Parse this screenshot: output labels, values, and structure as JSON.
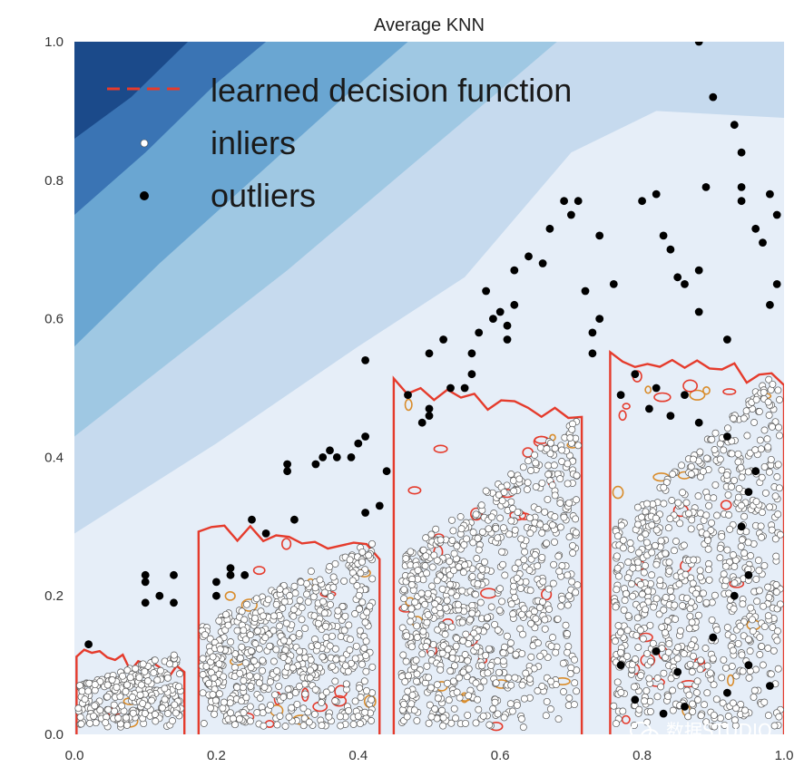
{
  "chart_data": {
    "type": "scatter",
    "title": "Average KNN",
    "xlabel": "",
    "ylabel": "",
    "xlim": [
      0.0,
      1.0
    ],
    "ylim": [
      0.0,
      1.0
    ],
    "grid": false,
    "legend_position": "top-left",
    "x_ticks": [
      "0.0",
      "0.2",
      "0.4",
      "0.6",
      "0.8",
      "1.0"
    ],
    "y_ticks": [
      "0.0",
      "0.2",
      "0.4",
      "0.6",
      "0.8",
      "1.0"
    ],
    "contour_fill": {
      "colormap": "Blues",
      "boundaries": [
        [
          [
            0.0,
            0.86
          ],
          [
            0.08,
            0.92
          ],
          [
            0.16,
            1.0
          ]
        ],
        [
          [
            0.0,
            0.75
          ],
          [
            0.1,
            0.84
          ],
          [
            0.2,
            0.94
          ],
          [
            0.27,
            1.0
          ]
        ],
        [
          [
            0.0,
            0.56
          ],
          [
            0.12,
            0.68
          ],
          [
            0.25,
            0.8
          ],
          [
            0.38,
            0.92
          ],
          [
            0.47,
            1.0
          ]
        ],
        [
          [
            0.0,
            0.43
          ],
          [
            0.15,
            0.55
          ],
          [
            0.3,
            0.67
          ],
          [
            0.45,
            0.8
          ],
          [
            0.6,
            0.93
          ],
          [
            0.68,
            1.0
          ]
        ],
        [
          [
            0.0,
            0.29
          ],
          [
            0.2,
            0.42
          ],
          [
            0.4,
            0.56
          ],
          [
            0.55,
            0.66
          ],
          [
            0.7,
            0.84
          ],
          [
            0.82,
            0.9
          ],
          [
            1.0,
            0.89
          ]
        ]
      ],
      "colors": [
        "#1b4a8a",
        "#3a74b4",
        "#6aa6d2",
        "#9fc8e3",
        "#c6daee",
        "#e6eef8"
      ]
    },
    "series": [
      {
        "name": "learned decision function",
        "kind": "contour-line",
        "color": "#e53b2c",
        "clusters": [
          {
            "x": [
              0.003,
              0.155
            ],
            "y": [
              0.0,
              0.125
            ]
          },
          {
            "x": [
              0.175,
              0.43
            ],
            "y": [
              0.0,
              0.3
            ]
          },
          {
            "x": [
              0.45,
              0.715
            ],
            "y": [
              0.0,
              0.5
            ]
          },
          {
            "x": [
              0.755,
              1.0
            ],
            "y": [
              0.0,
              0.55
            ]
          }
        ]
      },
      {
        "name": "inliers",
        "kind": "points",
        "color": "#ffffff",
        "clusters": [
          {
            "x": [
              0.005,
              0.15
            ],
            "y": [
              0.01,
              0.12
            ],
            "count": 260
          },
          {
            "x": [
              0.18,
              0.42
            ],
            "y": [
              0.01,
              0.28
            ],
            "count": 620
          },
          {
            "x": [
              0.46,
              0.71
            ],
            "y": [
              0.01,
              0.46
            ],
            "count": 820
          },
          {
            "x": [
              0.76,
              0.995
            ],
            "y": [
              0.01,
              0.53
            ],
            "count": 760
          }
        ]
      },
      {
        "name": "outliers",
        "kind": "points",
        "color": "#000000",
        "points": [
          [
            0.02,
            0.13
          ],
          [
            0.1,
            0.23
          ],
          [
            0.1,
            0.19
          ],
          [
            0.1,
            0.22
          ],
          [
            0.14,
            0.23
          ],
          [
            0.12,
            0.2
          ],
          [
            0.14,
            0.19
          ],
          [
            0.2,
            0.2
          ],
          [
            0.2,
            0.22
          ],
          [
            0.22,
            0.23
          ],
          [
            0.22,
            0.24
          ],
          [
            0.25,
            0.31
          ],
          [
            0.24,
            0.23
          ],
          [
            0.27,
            0.29
          ],
          [
            0.3,
            0.39
          ],
          [
            0.3,
            0.38
          ],
          [
            0.31,
            0.31
          ],
          [
            0.34,
            0.39
          ],
          [
            0.35,
            0.4
          ],
          [
            0.37,
            0.4
          ],
          [
            0.36,
            0.41
          ],
          [
            0.4,
            0.42
          ],
          [
            0.39,
            0.4
          ],
          [
            0.41,
            0.43
          ],
          [
            0.41,
            0.32
          ],
          [
            0.43,
            0.33
          ],
          [
            0.44,
            0.38
          ],
          [
            0.41,
            0.54
          ],
          [
            0.47,
            0.49
          ],
          [
            0.49,
            0.45
          ],
          [
            0.5,
            0.46
          ],
          [
            0.5,
            0.47
          ],
          [
            0.5,
            0.55
          ],
          [
            0.52,
            0.57
          ],
          [
            0.53,
            0.5
          ],
          [
            0.55,
            0.5
          ],
          [
            0.56,
            0.52
          ],
          [
            0.56,
            0.55
          ],
          [
            0.57,
            0.58
          ],
          [
            0.58,
            0.64
          ],
          [
            0.59,
            0.6
          ],
          [
            0.6,
            0.61
          ],
          [
            0.61,
            0.59
          ],
          [
            0.61,
            0.57
          ],
          [
            0.62,
            0.62
          ],
          [
            0.62,
            0.67
          ],
          [
            0.64,
            0.69
          ],
          [
            0.66,
            0.68
          ],
          [
            0.67,
            0.73
          ],
          [
            0.69,
            0.77
          ],
          [
            0.7,
            0.75
          ],
          [
            0.71,
            0.77
          ],
          [
            0.72,
            0.64
          ],
          [
            0.73,
            0.55
          ],
          [
            0.73,
            0.58
          ],
          [
            0.74,
            0.6
          ],
          [
            0.76,
            0.65
          ],
          [
            0.74,
            0.72
          ],
          [
            0.8,
            0.77
          ],
          [
            0.82,
            0.78
          ],
          [
            0.83,
            0.72
          ],
          [
            0.84,
            0.7
          ],
          [
            0.86,
            0.65
          ],
          [
            0.88,
            0.61
          ],
          [
            0.88,
            0.67
          ],
          [
            0.89,
            0.79
          ],
          [
            0.9,
            0.92
          ],
          [
            0.94,
            0.77
          ],
          [
            0.94,
            0.79
          ],
          [
            0.93,
            0.88
          ],
          [
            0.94,
            0.84
          ],
          [
            0.96,
            0.73
          ],
          [
            0.97,
            0.71
          ],
          [
            0.98,
            0.78
          ],
          [
            0.99,
            0.75
          ],
          [
            0.98,
            0.62
          ],
          [
            0.99,
            0.65
          ],
          [
            0.88,
            1.0
          ],
          [
            0.85,
            0.66
          ],
          [
            0.82,
            0.5
          ],
          [
            0.84,
            0.46
          ],
          [
            0.86,
            0.49
          ],
          [
            0.88,
            0.45
          ],
          [
            0.77,
            0.49
          ],
          [
            0.79,
            0.52
          ],
          [
            0.81,
            0.47
          ],
          [
            0.92,
            0.57
          ],
          [
            0.92,
            0.43
          ],
          [
            0.95,
            0.35
          ],
          [
            0.94,
            0.3
          ],
          [
            0.96,
            0.38
          ],
          [
            0.82,
            0.12
          ],
          [
            0.85,
            0.09
          ],
          [
            0.83,
            0.03
          ],
          [
            0.86,
            0.04
          ],
          [
            0.92,
            0.06
          ],
          [
            0.95,
            0.1
          ],
          [
            0.98,
            0.07
          ],
          [
            0.77,
            0.1
          ],
          [
            0.79,
            0.05
          ],
          [
            0.9,
            0.14
          ],
          [
            0.93,
            0.2
          ],
          [
            0.95,
            0.23
          ]
        ]
      }
    ],
    "legend": [
      {
        "label": "learned decision function",
        "marker": "dashed-line"
      },
      {
        "label": "inliers",
        "marker": "white-dot"
      },
      {
        "label": "outliers",
        "marker": "black-dot"
      }
    ]
  },
  "watermark": {
    "text": "数据STUDIO",
    "icon": "wechat-icon"
  }
}
